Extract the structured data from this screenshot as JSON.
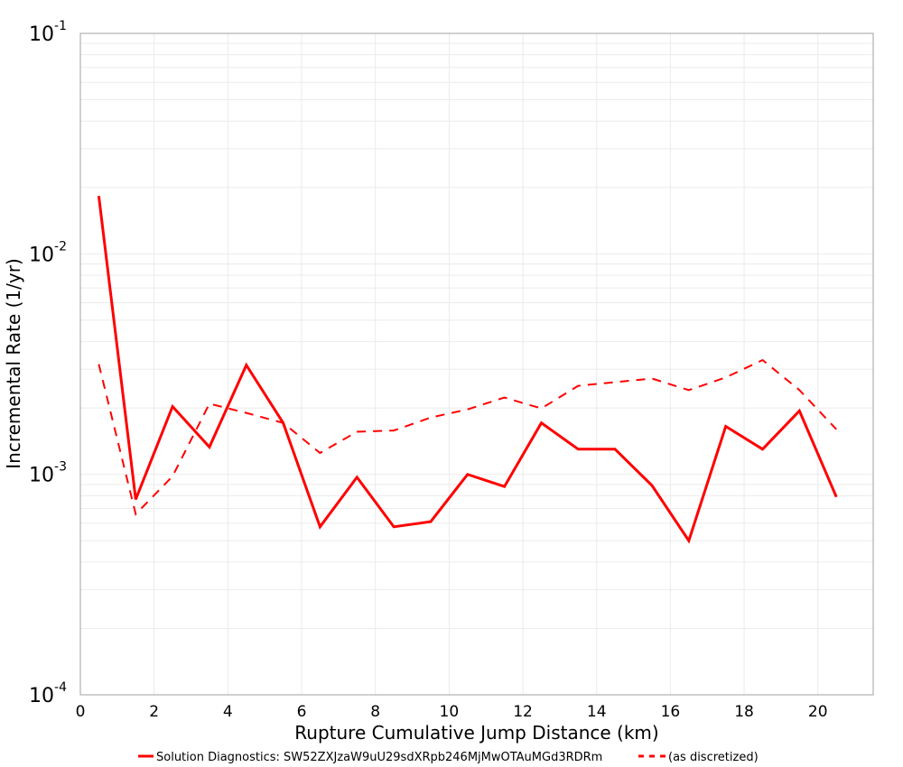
{
  "chart_data": {
    "type": "line",
    "title": "",
    "xlabel": "Rupture Cumulative Jump Distance (km)",
    "ylabel": "Incremental Rate (1/yr)",
    "xlim": [
      0,
      21.5
    ],
    "ylim": [
      0.0001,
      0.1
    ],
    "yscale": "log",
    "grid": true,
    "legend_position": "bottom",
    "x_ticks": [
      "0",
      "2",
      "4",
      "6",
      "8",
      "10",
      "12",
      "14",
      "16",
      "18",
      "20"
    ],
    "y_ticks": [
      {
        "base": "10",
        "exp": "-1"
      },
      {
        "base": "10",
        "exp": "-2"
      },
      {
        "base": "10",
        "exp": "-3"
      },
      {
        "base": "10",
        "exp": "-4"
      }
    ],
    "x": [
      0.5,
      1.5,
      2.5,
      3.5,
      4.5,
      5.5,
      6.5,
      7.5,
      8.5,
      9.5,
      10.5,
      11.5,
      12.5,
      13.5,
      14.5,
      15.5,
      16.5,
      17.5,
      18.5,
      19.5,
      20.5
    ],
    "series": [
      {
        "name": "Solution Diagnostics: SW52ZXJzaW9uU29sdXRpb246MjMwOTAuMGd3RDRm",
        "style": "solid",
        "color": "#ff0000",
        "values": [
          0.0183,
          0.00077,
          0.00203,
          0.00133,
          0.00313,
          0.00171,
          0.000578,
          0.00097,
          0.000578,
          0.00061,
          0.001,
          0.00088,
          0.00171,
          0.0013,
          0.0013,
          0.00089,
          0.0005,
          0.00165,
          0.0013,
          0.00194,
          0.00079
        ]
      },
      {
        "name": "(as discretized)",
        "style": "dashed",
        "color": "#ff0000",
        "values": [
          0.00316,
          0.00066,
          0.00098,
          0.00209,
          0.0019,
          0.00171,
          0.00125,
          0.00156,
          0.00158,
          0.00181,
          0.00197,
          0.00223,
          0.00199,
          0.00252,
          0.00262,
          0.00272,
          0.00241,
          0.00275,
          0.0033,
          0.00241,
          0.0016
        ]
      }
    ]
  },
  "legend": {
    "solid_label": "Solution Diagnostics: SW52ZXJzaW9uU29sdXRpb246MjMwOTAuMGd3RDRm",
    "dashed_label": "(as discretized)"
  }
}
